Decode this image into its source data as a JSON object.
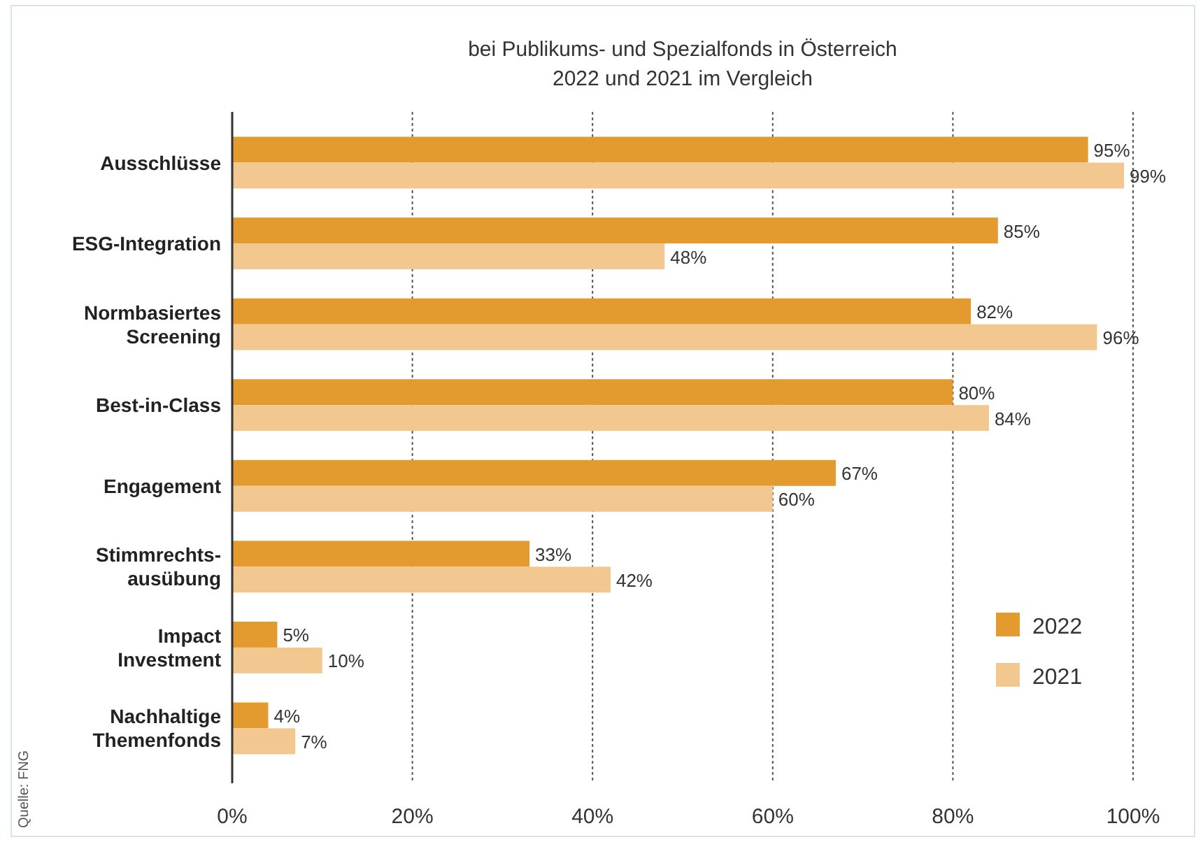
{
  "chart_data": {
    "type": "bar",
    "orientation": "horizontal",
    "title": "bei Publikums- und Spezialfonds in Österreich\n2022 und 2021 im Vergleich",
    "categories": [
      "Ausschlüsse",
      "ESG-Integration",
      "Normbasiertes\nScreening",
      "Best-in-Class",
      "Engagement",
      "Stimmrechts-\nausübung",
      "Impact\nInvestment",
      "Nachhaltige\nThemenfonds"
    ],
    "series": [
      {
        "name": "2022",
        "color": "#e39a2e",
        "values": [
          95,
          85,
          82,
          80,
          67,
          33,
          5,
          4
        ],
        "value_labels": [
          "95%",
          "85%",
          "82%",
          "80%",
          "67%",
          "33%",
          "5%",
          "4%"
        ]
      },
      {
        "name": "2021",
        "color": "#f2c790",
        "values": [
          99,
          48,
          96,
          84,
          60,
          42,
          10,
          7
        ],
        "value_labels": [
          "99%",
          "48%",
          "96%",
          "84%",
          "60%",
          "42%",
          "10%",
          "7%"
        ]
      }
    ],
    "xlim": [
      0,
      100
    ],
    "xticks": [
      {
        "value": 0,
        "label": "0%"
      },
      {
        "value": 20,
        "label": "20%"
      },
      {
        "value": 40,
        "label": "40%"
      },
      {
        "value": 60,
        "label": "60%"
      },
      {
        "value": 80,
        "label": "80%"
      },
      {
        "value": 100,
        "label": "100%"
      }
    ],
    "grid": "x",
    "legend": "bottom right",
    "annotations": [
      "Quelle: FNG"
    ]
  }
}
